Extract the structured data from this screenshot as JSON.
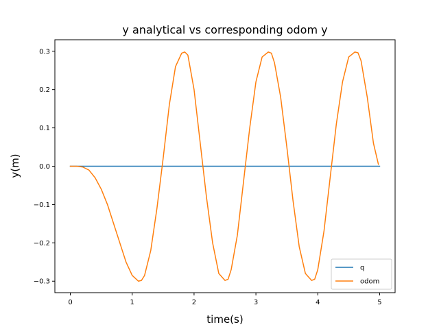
{
  "chart_data": {
    "type": "line",
    "title": "y analytical vs corresponding odom y",
    "xlabel": "time(s)",
    "ylabel": "y(m)",
    "xlim": [
      -0.25,
      5.25
    ],
    "ylim": [
      -0.33,
      0.33
    ],
    "xticks": [
      0,
      1,
      2,
      3,
      4,
      5
    ],
    "xtick_labels": [
      "0",
      "1",
      "2",
      "3",
      "4",
      "5"
    ],
    "yticks": [
      -0.3,
      -0.2,
      -0.1,
      0.0,
      0.1,
      0.2,
      0.3
    ],
    "ytick_labels": [
      "−0.3",
      "−0.2",
      "−0.1",
      "0.0",
      "0.1",
      "0.2",
      "0.3"
    ],
    "grid": false,
    "legend_position": "bottom-right",
    "series": [
      {
        "name": "q",
        "color": "#1f77b4",
        "x": [
          0,
          5
        ],
        "y": [
          0,
          0
        ]
      },
      {
        "name": "odom",
        "color": "#ff7f0e",
        "x": [
          0,
          0.1,
          0.2,
          0.3,
          0.4,
          0.5,
          0.6,
          0.7,
          0.8,
          0.9,
          1.0,
          1.1,
          1.15,
          1.2,
          1.3,
          1.4,
          1.5,
          1.6,
          1.7,
          1.8,
          1.85,
          1.9,
          2.0,
          2.1,
          2.2,
          2.3,
          2.4,
          2.5,
          2.55,
          2.6,
          2.7,
          2.8,
          2.9,
          3.0,
          3.1,
          3.2,
          3.25,
          3.3,
          3.4,
          3.5,
          3.6,
          3.7,
          3.8,
          3.9,
          3.95,
          4.0,
          4.1,
          4.2,
          4.3,
          4.4,
          4.5,
          4.6,
          4.65,
          4.7,
          4.8,
          4.9,
          4.98
        ],
        "y": [
          0,
          0,
          -0.002,
          -0.01,
          -0.03,
          -0.06,
          -0.1,
          -0.15,
          -0.2,
          -0.25,
          -0.285,
          -0.3,
          -0.298,
          -0.285,
          -0.22,
          -0.11,
          0.02,
          0.16,
          0.26,
          0.295,
          0.298,
          0.29,
          0.2,
          0.06,
          -0.08,
          -0.2,
          -0.28,
          -0.298,
          -0.295,
          -0.27,
          -0.18,
          -0.04,
          0.1,
          0.22,
          0.285,
          0.298,
          0.295,
          0.27,
          0.18,
          0.05,
          -0.09,
          -0.21,
          -0.28,
          -0.298,
          -0.295,
          -0.27,
          -0.17,
          -0.03,
          0.11,
          0.22,
          0.285,
          0.298,
          0.296,
          0.275,
          0.18,
          0.06,
          0.005
        ]
      }
    ]
  }
}
